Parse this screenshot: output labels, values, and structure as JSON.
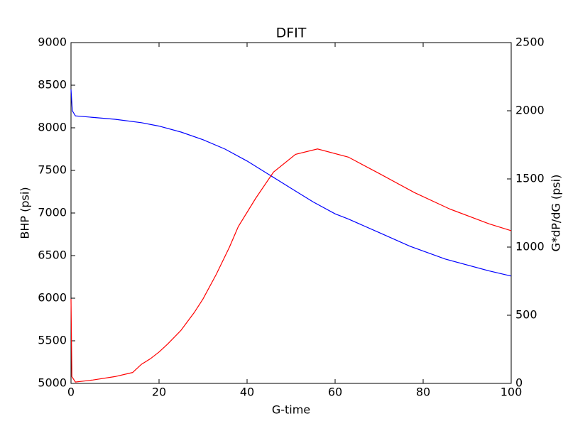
{
  "chart_data": {
    "type": "line",
    "title": "DFIT",
    "x_label": "G-time",
    "y_label": "BHP (psi)",
    "y2_label": "G*dP/dG (psi)",
    "xlim": [
      0,
      100
    ],
    "xticks": [
      0,
      20,
      40,
      60,
      80,
      100
    ],
    "ylim": [
      5000,
      9000
    ],
    "yticks": [
      5000,
      5500,
      6000,
      6500,
      7000,
      7500,
      8000,
      8500,
      9000
    ],
    "y2lim": [
      0,
      2500
    ],
    "y2ticks": [
      0,
      500,
      1000,
      1500,
      2000,
      2500
    ],
    "grid": false,
    "series": [
      {
        "name": "BHP",
        "color": "#0000ff",
        "axis": "y",
        "x": [
          0,
          0.3,
          1,
          10,
          16,
          20,
          25,
          30,
          35,
          40,
          45,
          50,
          55,
          60,
          63,
          70,
          77,
          85,
          95,
          100
        ],
        "values": [
          8450,
          8200,
          8140,
          8100,
          8060,
          8020,
          7950,
          7860,
          7750,
          7610,
          7450,
          7290,
          7130,
          6990,
          6930,
          6770,
          6610,
          6460,
          6320,
          6260
        ]
      },
      {
        "name": "G*dP/dG",
        "color": "#ff0000",
        "axis": "y2",
        "x": [
          0,
          0.2,
          1,
          5,
          10,
          14,
          16,
          18,
          20,
          22,
          25,
          28,
          30,
          33,
          36,
          38,
          42,
          46,
          51,
          56,
          63,
          70,
          78,
          86,
          95,
          100
        ],
        "values": [
          620,
          50,
          10,
          25,
          50,
          80,
          140,
          180,
          230,
          290,
          390,
          520,
          620,
          800,
          1000,
          1150,
          1360,
          1550,
          1680,
          1720,
          1660,
          1540,
          1400,
          1280,
          1170,
          1120
        ]
      }
    ]
  }
}
